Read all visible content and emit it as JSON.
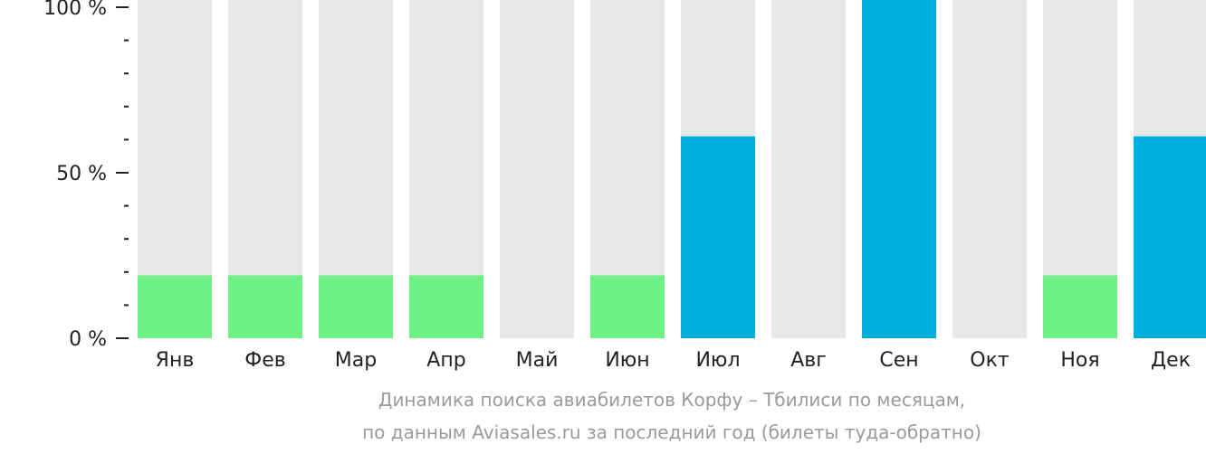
{
  "chart_data": {
    "type": "bar",
    "categories": [
      "Янв",
      "Фев",
      "Мар",
      "Апр",
      "Май",
      "Июн",
      "Июл",
      "Авг",
      "Сен",
      "Окт",
      "Ноя",
      "Дек"
    ],
    "values": [
      19,
      19,
      19,
      19,
      0,
      19,
      61,
      0,
      100,
      0,
      19,
      61
    ],
    "ylim": [
      0,
      100
    ],
    "yticks": [
      {
        "value": 0,
        "label": "0 %"
      },
      {
        "value": 50,
        "label": "50 %"
      },
      {
        "value": 100,
        "label": "100 %"
      }
    ],
    "minor_ticks": [
      10,
      20,
      30,
      40,
      60,
      70,
      80,
      90
    ],
    "title": "",
    "xlabel": "",
    "ylabel": "",
    "caption": [
      "Динамика поиска авиабилетов Корфу – Тбилиси по месяцам,",
      "по данным Aviasales.ru за последний год (билеты туда-обратно)"
    ]
  },
  "colors": {
    "track": "#e8e8e8",
    "low": "#6df084",
    "high": "#00b0dc",
    "text": "#222222",
    "caption": "#9a9a9a"
  }
}
